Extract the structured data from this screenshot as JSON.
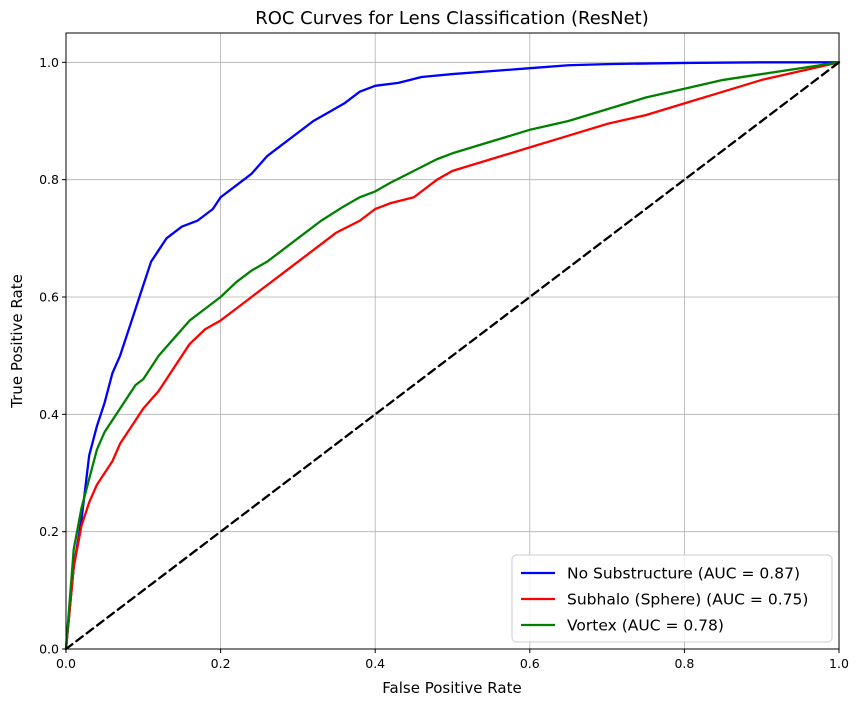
{
  "chart_data": {
    "type": "line",
    "title": "ROC Curves for Lens Classification (ResNet)",
    "xlabel": "False Positive Rate",
    "ylabel": "True Positive Rate",
    "xlim": [
      0.0,
      1.0
    ],
    "ylim": [
      0.0,
      1.05
    ],
    "x_ticks": [
      "0.0",
      "0.2",
      "0.4",
      "0.6",
      "0.8",
      "1.0"
    ],
    "y_ticks": [
      "0.0",
      "0.2",
      "0.4",
      "0.6",
      "0.8",
      "1.0"
    ],
    "grid": true,
    "legend_position": "bottom-right",
    "series": [
      {
        "name": "No Substructure (AUC = 0.87)",
        "color": "#0000ff",
        "x": [
          0.0,
          0.01,
          0.02,
          0.03,
          0.04,
          0.05,
          0.06,
          0.07,
          0.08,
          0.09,
          0.1,
          0.11,
          0.12,
          0.13,
          0.14,
          0.15,
          0.17,
          0.19,
          0.2,
          0.22,
          0.24,
          0.26,
          0.28,
          0.3,
          0.32,
          0.34,
          0.36,
          0.38,
          0.4,
          0.43,
          0.46,
          0.5,
          0.55,
          0.6,
          0.65,
          0.7,
          0.8,
          0.9,
          1.0
        ],
        "y": [
          0.0,
          0.14,
          0.22,
          0.33,
          0.38,
          0.42,
          0.47,
          0.5,
          0.54,
          0.58,
          0.62,
          0.66,
          0.68,
          0.7,
          0.71,
          0.72,
          0.73,
          0.75,
          0.77,
          0.79,
          0.81,
          0.84,
          0.86,
          0.88,
          0.9,
          0.915,
          0.93,
          0.95,
          0.96,
          0.965,
          0.975,
          0.98,
          0.985,
          0.99,
          0.995,
          0.997,
          0.999,
          1.0,
          1.0
        ]
      },
      {
        "name": "Subhalo (Sphere) (AUC = 0.75)",
        "color": "#ff0000",
        "x": [
          0.0,
          0.01,
          0.02,
          0.03,
          0.04,
          0.05,
          0.06,
          0.07,
          0.08,
          0.09,
          0.1,
          0.12,
          0.14,
          0.16,
          0.18,
          0.2,
          0.22,
          0.24,
          0.26,
          0.28,
          0.3,
          0.32,
          0.35,
          0.38,
          0.4,
          0.42,
          0.45,
          0.48,
          0.5,
          0.55,
          0.6,
          0.65,
          0.7,
          0.75,
          0.8,
          0.85,
          0.9,
          0.95,
          1.0
        ],
        "y": [
          0.0,
          0.14,
          0.21,
          0.25,
          0.28,
          0.3,
          0.32,
          0.35,
          0.37,
          0.39,
          0.41,
          0.44,
          0.48,
          0.52,
          0.545,
          0.56,
          0.58,
          0.6,
          0.62,
          0.64,
          0.66,
          0.68,
          0.71,
          0.73,
          0.75,
          0.76,
          0.77,
          0.8,
          0.815,
          0.835,
          0.855,
          0.875,
          0.895,
          0.91,
          0.93,
          0.95,
          0.97,
          0.985,
          1.0
        ]
      },
      {
        "name": "Vortex (AUC = 0.78)",
        "color": "#008000",
        "x": [
          0.0,
          0.01,
          0.02,
          0.03,
          0.04,
          0.05,
          0.06,
          0.07,
          0.08,
          0.09,
          0.1,
          0.12,
          0.14,
          0.16,
          0.18,
          0.2,
          0.22,
          0.24,
          0.26,
          0.28,
          0.3,
          0.33,
          0.36,
          0.38,
          0.4,
          0.42,
          0.45,
          0.48,
          0.5,
          0.55,
          0.6,
          0.65,
          0.7,
          0.75,
          0.8,
          0.85,
          0.9,
          0.95,
          1.0
        ],
        "y": [
          0.0,
          0.17,
          0.24,
          0.29,
          0.34,
          0.37,
          0.39,
          0.41,
          0.43,
          0.45,
          0.46,
          0.5,
          0.53,
          0.56,
          0.58,
          0.6,
          0.625,
          0.645,
          0.66,
          0.68,
          0.7,
          0.73,
          0.755,
          0.77,
          0.78,
          0.795,
          0.815,
          0.835,
          0.845,
          0.865,
          0.885,
          0.9,
          0.92,
          0.94,
          0.955,
          0.97,
          0.98,
          0.99,
          1.0
        ]
      },
      {
        "name": "",
        "color": "#000000",
        "dashed": true,
        "x": [
          0.0,
          1.0
        ],
        "y": [
          0.0,
          1.0
        ]
      }
    ]
  }
}
